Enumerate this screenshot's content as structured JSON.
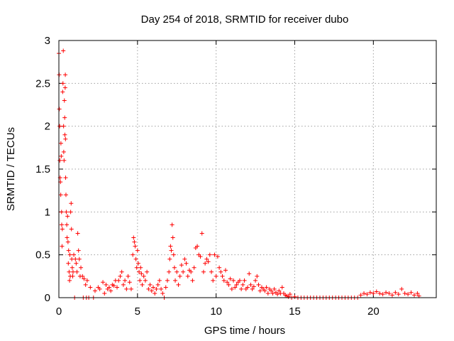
{
  "chart_data": {
    "type": "scatter",
    "title": "Day 254 of 2018, SRMTID for receiver dubo",
    "xlabel": "GPS time / hours",
    "ylabel": "SRMTID / TECUs",
    "xlim": [
      0,
      24
    ],
    "ylim": [
      0,
      3
    ],
    "x_ticks": [
      0,
      5,
      10,
      15,
      20
    ],
    "x_tick_labels": [
      "0",
      "5",
      "10",
      "15",
      "20"
    ],
    "y_ticks": [
      0,
      0.5,
      1,
      1.5,
      2,
      2.5,
      3
    ],
    "y_tick_labels": [
      "0",
      "0.5",
      "1",
      "1.5",
      "2",
      "2.5",
      "3"
    ],
    "grid": true,
    "marker": "+",
    "color": "#ff0000",
    "series": [
      {
        "name": "SRMTID",
        "points": [
          [
            0.0,
            2.85
          ],
          [
            0.02,
            2.6
          ],
          [
            0.03,
            2.2
          ],
          [
            0.05,
            2.0
          ],
          [
            0.06,
            1.6
          ],
          [
            0.08,
            1.4
          ],
          [
            0.1,
            1.35
          ],
          [
            0.12,
            1.2
          ],
          [
            0.13,
            1.8
          ],
          [
            0.15,
            1.65
          ],
          [
            0.17,
            1.0
          ],
          [
            0.18,
            0.85
          ],
          [
            0.2,
            0.6
          ],
          [
            0.22,
            0.8
          ],
          [
            0.24,
            2.4
          ],
          [
            0.26,
            2.5
          ],
          [
            0.28,
            2.88
          ],
          [
            0.3,
            2.0
          ],
          [
            0.31,
            1.7
          ],
          [
            0.33,
            1.6
          ],
          [
            0.35,
            2.3
          ],
          [
            0.37,
            2.1
          ],
          [
            0.38,
            1.9
          ],
          [
            0.4,
            2.45
          ],
          [
            0.41,
            2.6
          ],
          [
            0.42,
            1.85
          ],
          [
            0.43,
            1.4
          ],
          [
            0.45,
            1.2
          ],
          [
            0.47,
            1.0
          ],
          [
            0.5,
            0.85
          ],
          [
            0.52,
            0.7
          ],
          [
            0.55,
            0.95
          ],
          [
            0.58,
            0.65
          ],
          [
            0.6,
            0.4
          ],
          [
            0.62,
            0.55
          ],
          [
            0.65,
            0.3
          ],
          [
            0.68,
            0.2
          ],
          [
            0.7,
            0.5
          ],
          [
            0.72,
            0.25
          ],
          [
            0.75,
            1.0
          ],
          [
            0.78,
            1.1
          ],
          [
            0.8,
            0.8
          ],
          [
            0.82,
            0.45
          ],
          [
            0.85,
            0.35
          ],
          [
            0.88,
            0.25
          ],
          [
            0.9,
            0.3
          ],
          [
            0.95,
            0.5
          ],
          [
            1.0,
            0.0
          ],
          [
            1.05,
            0.45
          ],
          [
            1.1,
            0.4
          ],
          [
            1.15,
            0.3
          ],
          [
            1.2,
            0.75
          ],
          [
            1.25,
            0.55
          ],
          [
            1.3,
            0.45
          ],
          [
            1.35,
            0.25
          ],
          [
            1.4,
            0.35
          ],
          [
            1.5,
            0.25
          ],
          [
            1.55,
            0.0
          ],
          [
            1.6,
            0.22
          ],
          [
            1.7,
            0.15
          ],
          [
            1.75,
            0.0
          ],
          [
            1.8,
            0.2
          ],
          [
            1.9,
            0.0
          ],
          [
            2.0,
            0.12
          ],
          [
            2.2,
            0.0
          ],
          [
            2.3,
            0.08
          ],
          [
            2.5,
            0.12
          ],
          [
            2.6,
            0.1
          ],
          [
            2.8,
            0.18
          ],
          [
            2.9,
            0.05
          ],
          [
            3.0,
            0.15
          ],
          [
            3.1,
            0.1
          ],
          [
            3.2,
            0.12
          ],
          [
            3.3,
            0.08
          ],
          [
            3.4,
            0.15
          ],
          [
            3.5,
            0.14
          ],
          [
            3.6,
            0.2
          ],
          [
            3.7,
            0.12
          ],
          [
            3.8,
            0.2
          ],
          [
            3.9,
            0.25
          ],
          [
            4.0,
            0.3
          ],
          [
            4.1,
            0.15
          ],
          [
            4.2,
            0.2
          ],
          [
            4.3,
            0.1
          ],
          [
            4.4,
            0.25
          ],
          [
            4.5,
            0.18
          ],
          [
            4.6,
            0.1
          ],
          [
            4.7,
            0.5
          ],
          [
            4.75,
            0.7
          ],
          [
            4.8,
            0.65
          ],
          [
            4.85,
            0.6
          ],
          [
            4.9,
            0.45
          ],
          [
            4.95,
            0.35
          ],
          [
            5.0,
            0.55
          ],
          [
            5.05,
            0.4
          ],
          [
            5.1,
            0.3
          ],
          [
            5.15,
            0.2
          ],
          [
            5.2,
            0.35
          ],
          [
            5.25,
            0.28
          ],
          [
            5.3,
            0.15
          ],
          [
            5.4,
            0.25
          ],
          [
            5.5,
            0.2
          ],
          [
            5.6,
            0.3
          ],
          [
            5.7,
            0.1
          ],
          [
            5.8,
            0.15
          ],
          [
            5.9,
            0.08
          ],
          [
            6.0,
            0.12
          ],
          [
            6.1,
            0.05
          ],
          [
            6.2,
            0.1
          ],
          [
            6.3,
            0.15
          ],
          [
            6.4,
            0.2
          ],
          [
            6.5,
            0.1
          ],
          [
            6.6,
            0.05
          ],
          [
            6.7,
            0.0
          ],
          [
            6.8,
            0.12
          ],
          [
            6.9,
            0.2
          ],
          [
            7.0,
            0.3
          ],
          [
            7.05,
            0.45
          ],
          [
            7.1,
            0.6
          ],
          [
            7.15,
            0.55
          ],
          [
            7.2,
            0.85
          ],
          [
            7.25,
            0.7
          ],
          [
            7.3,
            0.5
          ],
          [
            7.35,
            0.35
          ],
          [
            7.4,
            0.2
          ],
          [
            7.5,
            0.3
          ],
          [
            7.6,
            0.15
          ],
          [
            7.7,
            0.25
          ],
          [
            7.8,
            0.38
          ],
          [
            7.9,
            0.3
          ],
          [
            8.0,
            0.45
          ],
          [
            8.1,
            0.4
          ],
          [
            8.2,
            0.25
          ],
          [
            8.3,
            0.32
          ],
          [
            8.4,
            0.3
          ],
          [
            8.5,
            0.2
          ],
          [
            8.6,
            0.35
          ],
          [
            8.7,
            0.58
          ],
          [
            8.8,
            0.6
          ],
          [
            8.9,
            0.5
          ],
          [
            9.0,
            0.48
          ],
          [
            9.1,
            0.75
          ],
          [
            9.2,
            0.3
          ],
          [
            9.3,
            0.4
          ],
          [
            9.4,
            0.45
          ],
          [
            9.5,
            0.42
          ],
          [
            9.6,
            0.5
          ],
          [
            9.7,
            0.3
          ],
          [
            9.8,
            0.2
          ],
          [
            9.9,
            0.5
          ],
          [
            10.0,
            0.25
          ],
          [
            10.1,
            0.48
          ],
          [
            10.2,
            0.35
          ],
          [
            10.3,
            0.3
          ],
          [
            10.4,
            0.25
          ],
          [
            10.5,
            0.2
          ],
          [
            10.6,
            0.32
          ],
          [
            10.7,
            0.18
          ],
          [
            10.8,
            0.15
          ],
          [
            10.9,
            0.22
          ],
          [
            11.0,
            0.1
          ],
          [
            11.1,
            0.2
          ],
          [
            11.2,
            0.12
          ],
          [
            11.3,
            0.15
          ],
          [
            11.4,
            0.18
          ],
          [
            11.5,
            0.2
          ],
          [
            11.6,
            0.1
          ],
          [
            11.7,
            0.15
          ],
          [
            11.8,
            0.2
          ],
          [
            11.9,
            0.1
          ],
          [
            12.0,
            0.12
          ],
          [
            12.1,
            0.28
          ],
          [
            12.2,
            0.15
          ],
          [
            12.3,
            0.1
          ],
          [
            12.4,
            0.13
          ],
          [
            12.5,
            0.2
          ],
          [
            12.6,
            0.25
          ],
          [
            12.7,
            0.15
          ],
          [
            12.8,
            0.08
          ],
          [
            12.9,
            0.12
          ],
          [
            13.0,
            0.1
          ],
          [
            13.1,
            0.08
          ],
          [
            13.2,
            0.12
          ],
          [
            13.3,
            0.05
          ],
          [
            13.4,
            0.1
          ],
          [
            13.5,
            0.08
          ],
          [
            13.6,
            0.05
          ],
          [
            13.7,
            0.1
          ],
          [
            13.8,
            0.06
          ],
          [
            13.9,
            0.04
          ],
          [
            14.0,
            0.08
          ],
          [
            14.1,
            0.05
          ],
          [
            14.2,
            0.12
          ],
          [
            14.3,
            0.05
          ],
          [
            14.4,
            0.03
          ],
          [
            14.5,
            0.02
          ],
          [
            14.6,
            0.01
          ],
          [
            14.7,
            0.04
          ],
          [
            14.8,
            0.0
          ],
          [
            15.0,
            0.01
          ],
          [
            15.2,
            0.0
          ],
          [
            15.4,
            0.0
          ],
          [
            15.6,
            0.0
          ],
          [
            15.8,
            0.0
          ],
          [
            16.0,
            0.0
          ],
          [
            16.2,
            0.0
          ],
          [
            16.4,
            0.0
          ],
          [
            16.6,
            0.0
          ],
          [
            16.8,
            0.0
          ],
          [
            17.0,
            0.0
          ],
          [
            17.2,
            0.0
          ],
          [
            17.4,
            0.0
          ],
          [
            17.6,
            0.0
          ],
          [
            17.8,
            0.0
          ],
          [
            18.0,
            0.0
          ],
          [
            18.2,
            0.0
          ],
          [
            18.4,
            0.0
          ],
          [
            18.6,
            0.0
          ],
          [
            18.8,
            0.0
          ],
          [
            19.0,
            0.0
          ],
          [
            19.2,
            0.03
          ],
          [
            19.4,
            0.05
          ],
          [
            19.6,
            0.04
          ],
          [
            19.8,
            0.06
          ],
          [
            20.0,
            0.05
          ],
          [
            20.2,
            0.07
          ],
          [
            20.4,
            0.05
          ],
          [
            20.6,
            0.04
          ],
          [
            20.8,
            0.06
          ],
          [
            21.0,
            0.05
          ],
          [
            21.2,
            0.03
          ],
          [
            21.4,
            0.06
          ],
          [
            21.6,
            0.04
          ],
          [
            21.8,
            0.1
          ],
          [
            22.0,
            0.05
          ],
          [
            22.2,
            0.04
          ],
          [
            22.4,
            0.06
          ],
          [
            22.6,
            0.03
          ],
          [
            22.8,
            0.05
          ],
          [
            22.9,
            0.02
          ]
        ]
      }
    ]
  }
}
